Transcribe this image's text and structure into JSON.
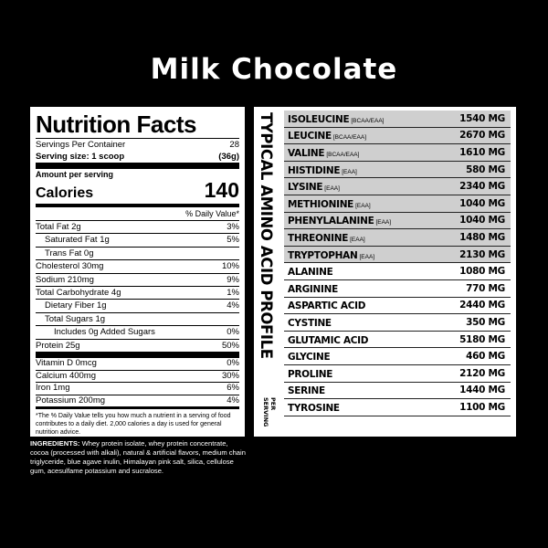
{
  "header": {
    "title": "Milk Chocolate"
  },
  "nutrition": {
    "title": "Nutrition Facts",
    "servings_label": "Servings Per Container",
    "servings_value": "28",
    "size_label": "Serving size: 1 scoop",
    "size_value": "(36g)",
    "amount_label": "Amount per serving",
    "calories_label": "Calories",
    "calories_value": "140",
    "dv_header": "% Daily Value*",
    "rows": [
      {
        "label": "Total Fat 2g",
        "dv": "3%",
        "sub": [
          {
            "label": "Saturated Fat 1g",
            "dv": "5%"
          },
          {
            "label": "Trans Fat 0g"
          }
        ]
      },
      {
        "label": "Cholesterol 30mg",
        "dv": "10%"
      },
      {
        "label": "Sodium 210mg",
        "dv": "9%"
      },
      {
        "label": "Total Carbohydrate 4g",
        "dv": "1%",
        "sub": [
          {
            "label": "Dietary Fiber 1g",
            "dv": "4%"
          },
          {
            "label": "Total Sugars 1g",
            "sub": [
              {
                "label": "Includes 0g Added Sugars",
                "dv": "0%"
              }
            ]
          }
        ]
      },
      {
        "label": "Protein 25g",
        "dv": "50%"
      }
    ],
    "vitamins": [
      {
        "label": "Vitamin D 0mcg",
        "dv": "0%"
      },
      {
        "label": "Calcium 400mg",
        "dv": "30%"
      },
      {
        "label": "Iron 1mg",
        "dv": "6%"
      },
      {
        "label": "Potassium 200mg",
        "dv": "4%"
      }
    ],
    "footnote": "*The % Daily Value tells you how much a nutrient in a serving of food contributes to a daily diet. 2,000 calories a day is used for general nutrition advice."
  },
  "ingredients": {
    "label": "INGREDIENTS:",
    "text": "Whey protein isolate, whey protein concentrate, cocoa (processed with alkali), natural & artificial flavors, medium chain triglyceride, blue agave inulin, Himalayan pink salt, silica, cellulose gum, acesulfame potassium and sucralose."
  },
  "amino": {
    "title": "TYPICAL AMINO ACID PROFILE",
    "per": "PER SERVING",
    "rows": [
      {
        "name": "ISOLEUCINE",
        "tag": "[BCAA/EAA]",
        "value": "1540 MG"
      },
      {
        "name": "LEUCINE",
        "tag": "[BCAA/EAA]",
        "value": "2670 MG"
      },
      {
        "name": "VALINE",
        "tag": "[BCAA/EAA]",
        "value": "1610 MG"
      },
      {
        "name": "HISTIDINE",
        "tag": "[EAA]",
        "value": "580 MG"
      },
      {
        "name": "LYSINE",
        "tag": "[EAA]",
        "value": "2340 MG"
      },
      {
        "name": "METHIONINE",
        "tag": "[EAA]",
        "value": "1040 MG"
      },
      {
        "name": "PHENYLALANINE",
        "tag": "[EAA]",
        "value": "1040 MG"
      },
      {
        "name": "THREONINE",
        "tag": "[EAA]",
        "value": "1480 MG"
      },
      {
        "name": "TRYPTOPHAN",
        "tag": "[EAA]",
        "value": "2130 MG"
      },
      {
        "name": "ALANINE",
        "value": "1080 MG"
      },
      {
        "name": "ARGININE",
        "value": "770 MG"
      },
      {
        "name": "ASPARTIC ACID",
        "value": "2440 MG"
      },
      {
        "name": "CYSTINE",
        "value": "350 MG"
      },
      {
        "name": "GLUTAMIC ACID",
        "value": "5180 MG"
      },
      {
        "name": "GLYCINE",
        "value": "460 MG"
      },
      {
        "name": "PROLINE",
        "value": "2120 MG"
      },
      {
        "name": "SERINE",
        "value": "1440 MG"
      },
      {
        "name": "TYROSINE",
        "value": "1100 MG"
      }
    ]
  }
}
